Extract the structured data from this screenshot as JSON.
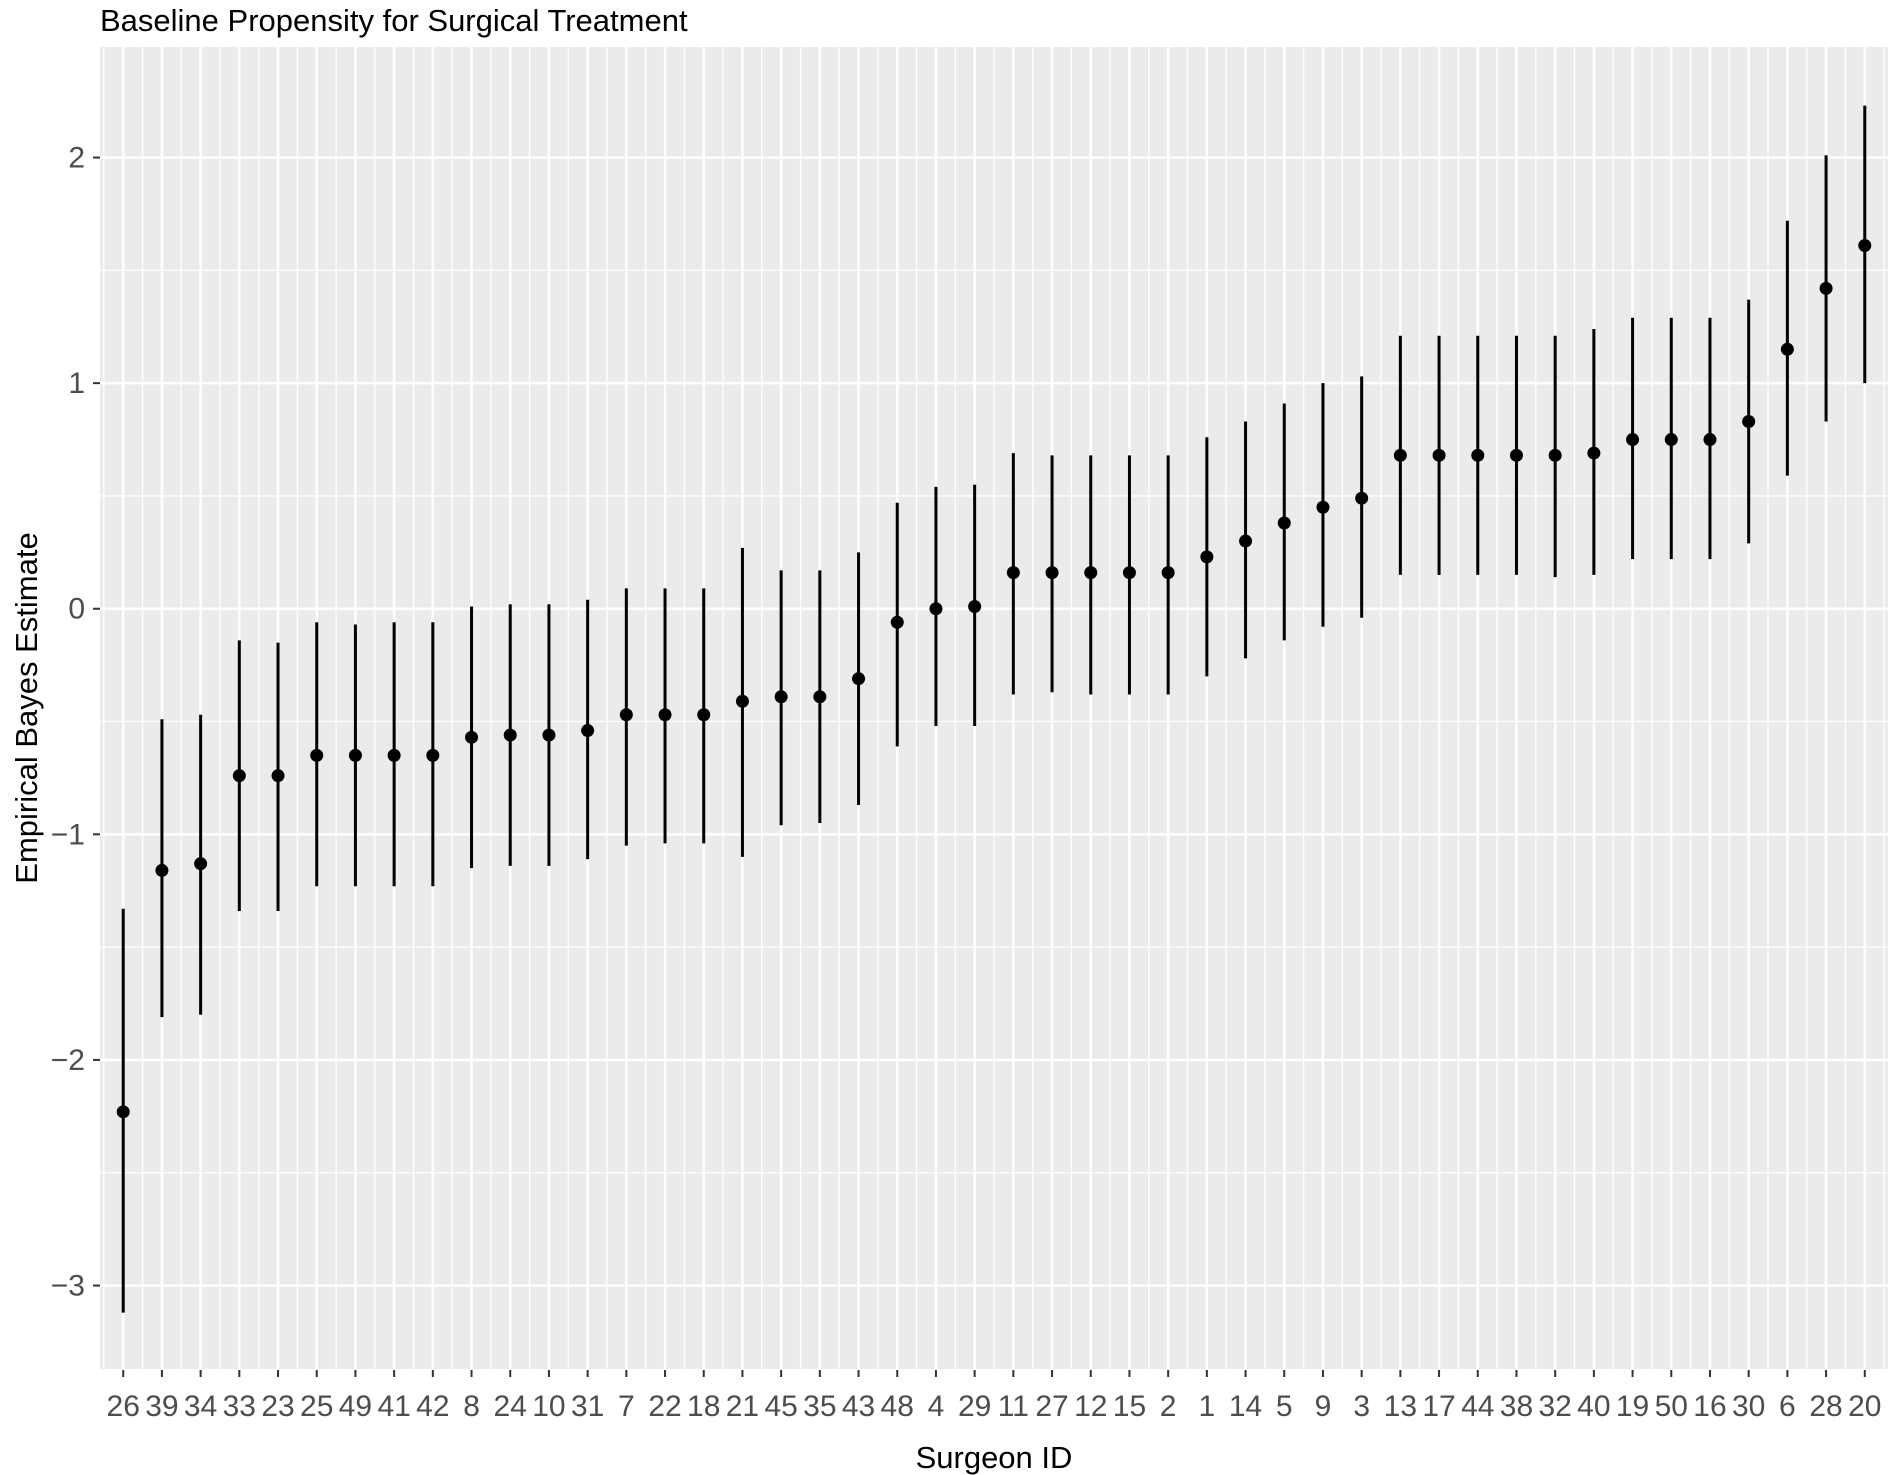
{
  "chart_data": {
    "type": "pointrange",
    "title": "Baseline Propensity for Surgical Treatment",
    "xlabel": "Surgeon ID",
    "ylabel": "Empirical Bayes Estimate",
    "categories": [
      "26",
      "39",
      "34",
      "33",
      "23",
      "25",
      "49",
      "41",
      "42",
      "8",
      "24",
      "10",
      "31",
      "7",
      "22",
      "18",
      "21",
      "45",
      "35",
      "43",
      "48",
      "4",
      "29",
      "11",
      "27",
      "12",
      "15",
      "2",
      "1",
      "14",
      "5",
      "9",
      "3",
      "13",
      "17",
      "44",
      "38",
      "32",
      "40",
      "19",
      "50",
      "16",
      "30",
      "6",
      "28",
      "20"
    ],
    "estimates": [
      -2.23,
      -1.16,
      -1.13,
      -0.74,
      -0.74,
      -0.65,
      -0.65,
      -0.65,
      -0.65,
      -0.57,
      -0.56,
      -0.56,
      -0.54,
      -0.47,
      -0.47,
      -0.47,
      -0.41,
      -0.39,
      -0.39,
      -0.31,
      -0.06,
      0.0,
      0.01,
      0.16,
      0.16,
      0.16,
      0.16,
      0.16,
      0.23,
      0.3,
      0.38,
      0.45,
      0.49,
      0.68,
      0.68,
      0.68,
      0.68,
      0.68,
      0.69,
      0.75,
      0.75,
      0.75,
      0.83,
      1.15,
      1.42,
      1.61
    ],
    "lower": [
      -3.12,
      -1.81,
      -1.8,
      -1.34,
      -1.34,
      -1.23,
      -1.23,
      -1.23,
      -1.23,
      -1.15,
      -1.14,
      -1.14,
      -1.11,
      -1.05,
      -1.04,
      -1.04,
      -1.1,
      -0.96,
      -0.95,
      -0.87,
      -0.61,
      -0.52,
      -0.52,
      -0.38,
      -0.37,
      -0.38,
      -0.38,
      -0.38,
      -0.3,
      -0.22,
      -0.14,
      -0.08,
      -0.04,
      0.15,
      0.15,
      0.15,
      0.15,
      0.14,
      0.15,
      0.22,
      0.22,
      0.22,
      0.29,
      0.59,
      0.83,
      1.0
    ],
    "upper": [
      -1.33,
      -0.49,
      -0.47,
      -0.14,
      -0.15,
      -0.06,
      -0.07,
      -0.06,
      -0.06,
      0.01,
      0.02,
      0.02,
      0.04,
      0.09,
      0.09,
      0.09,
      0.27,
      0.17,
      0.17,
      0.25,
      0.47,
      0.54,
      0.55,
      0.69,
      0.68,
      0.68,
      0.68,
      0.68,
      0.76,
      0.83,
      0.91,
      1.0,
      1.03,
      1.21,
      1.21,
      1.21,
      1.21,
      1.21,
      1.24,
      1.29,
      1.29,
      1.29,
      1.37,
      1.72,
      2.01,
      2.23
    ],
    "y_tick_values": [
      2,
      1,
      0,
      -1,
      -2,
      -3
    ],
    "y_tick_labels": [
      "2",
      "1",
      "0",
      "−1",
      "−2",
      "−3"
    ],
    "ylim": [
      -3.37,
      2.49
    ],
    "grid": "on",
    "legend": "none"
  },
  "colors": {
    "page_bg": "#FFFFFF",
    "panel_bg": "#EBEBEB",
    "grid": "#FFFFFF",
    "point": "#000000",
    "axis_text": "#4D4D4D",
    "tick_mark": "#333333",
    "title_text": "#000000"
  }
}
